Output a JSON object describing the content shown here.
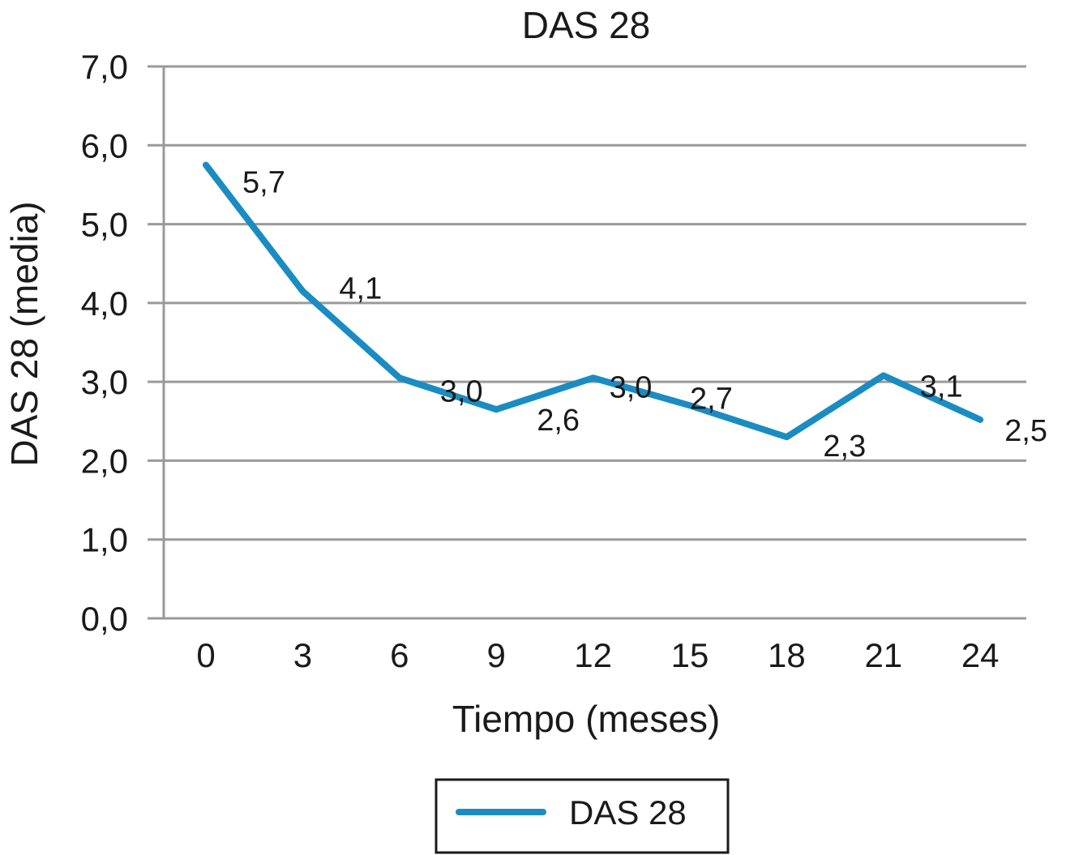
{
  "chart_data": {
    "type": "line",
    "title": "DAS 28",
    "xlabel": "Tiempo (meses)",
    "ylabel": "DAS 28 (media)",
    "x": [
      0,
      3,
      6,
      9,
      12,
      15,
      18,
      21,
      24
    ],
    "x_tick_labels": [
      "0",
      "3",
      "6",
      "9",
      "12",
      "15",
      "18",
      "21",
      "24"
    ],
    "y_tick_labels": [
      "0,0",
      "1,0",
      "2,0",
      "3,0",
      "4,0",
      "5,0",
      "6,0",
      "7,0"
    ],
    "ylim": [
      0,
      7
    ],
    "grid": true,
    "legend": "bottom",
    "series": [
      {
        "name": "DAS 28",
        "color": "#1a8cc2",
        "values": [
          5.75,
          4.15,
          3.05,
          2.65,
          3.05,
          2.7,
          2.3,
          3.08,
          2.52
        ],
        "data_labels": [
          "5,7",
          "4,1",
          "3,0",
          "2,6",
          "3,0",
          "2,7",
          "2,3",
          "3,1",
          "2,5"
        ]
      }
    ]
  }
}
